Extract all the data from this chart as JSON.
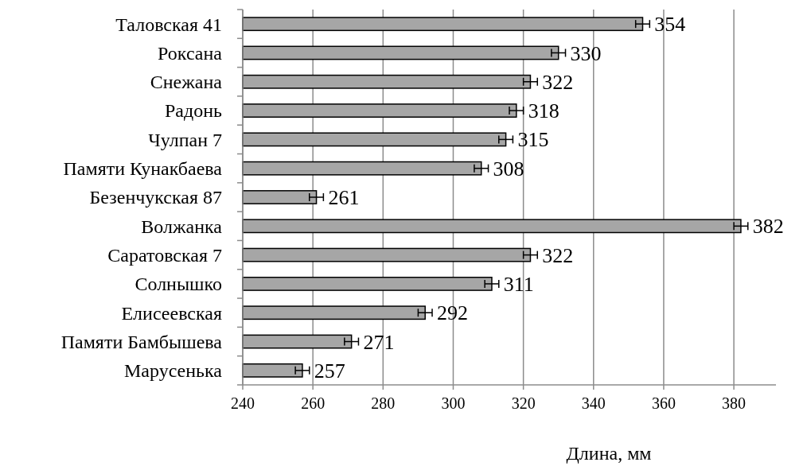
{
  "chart_data": {
    "type": "bar",
    "orientation": "horizontal",
    "xlabel": "Длина, мм",
    "categories": [
      "Таловская 41",
      "Роксана",
      "Снежана",
      "Радонь",
      "Чулпан 7",
      "Памяти Кунакбаева",
      "Безенчукская 87",
      "Волжанка",
      "Саратовская 7",
      "Солнышко",
      "Елисеевская",
      "Памяти Бамбышева",
      "Марусенька"
    ],
    "values": [
      354,
      330,
      322,
      318,
      315,
      308,
      261,
      382,
      322,
      311,
      292,
      271,
      257
    ],
    "errors": [
      2,
      2,
      2,
      2,
      2,
      2,
      2,
      2,
      2,
      2,
      2,
      2,
      2
    ],
    "color": "#a6a6a6",
    "xlim": [
      240,
      392
    ],
    "xticks": [
      240,
      260,
      280,
      300,
      320,
      340,
      360,
      380
    ],
    "grid": "x",
    "data_labels": true
  }
}
